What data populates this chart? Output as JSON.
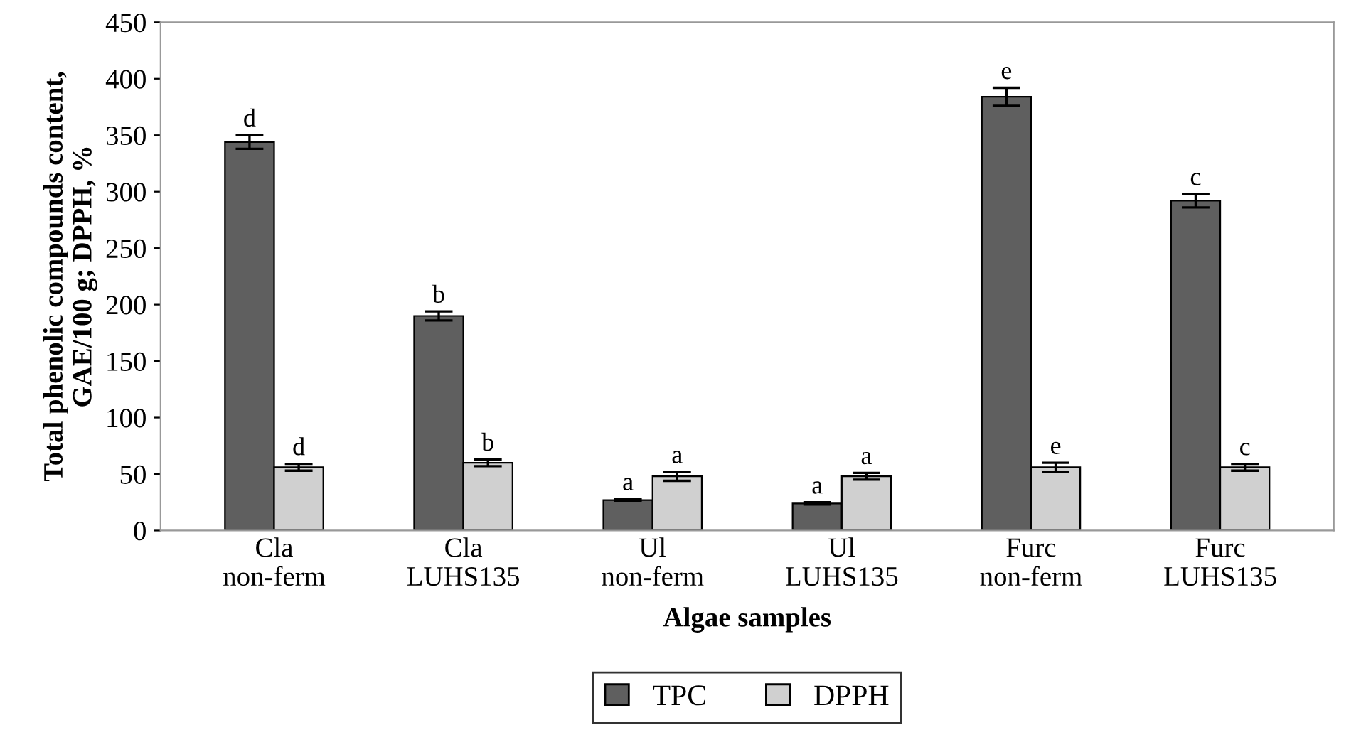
{
  "chart_data": {
    "type": "bar",
    "xlabel": "Algae samples",
    "ylabel": "Total phenolic compounds content,\nGAE/100 g; DPPH, %",
    "categories": [
      "Cla\nnon-ferm",
      "Cla\nLUHS135",
      "Ul\nnon-ferm",
      "Ul\nLUHS135",
      "Furc\nnon-ferm",
      "Furc\nLUHS135"
    ],
    "series": [
      {
        "name": "TPC",
        "color": "#5f5f5f",
        "values": [
          344,
          190,
          27,
          24,
          384,
          292
        ],
        "errors": [
          6,
          4,
          1,
          1,
          8,
          6
        ],
        "value_labels": [
          "d",
          "b",
          "a",
          "a",
          "e",
          "c"
        ]
      },
      {
        "name": "DPPH",
        "color": "#d0d0d0",
        "values": [
          56,
          60,
          48,
          48,
          56,
          56
        ],
        "errors": [
          3,
          3,
          4,
          3,
          4,
          3
        ],
        "value_labels": [
          "d",
          "b",
          "a",
          "a",
          "e",
          "c"
        ]
      }
    ],
    "ylim": [
      0,
      450
    ],
    "yticks": [
      0,
      50,
      100,
      150,
      200,
      250,
      300,
      350,
      400,
      450
    ],
    "grid": false,
    "legend": "bottom"
  }
}
